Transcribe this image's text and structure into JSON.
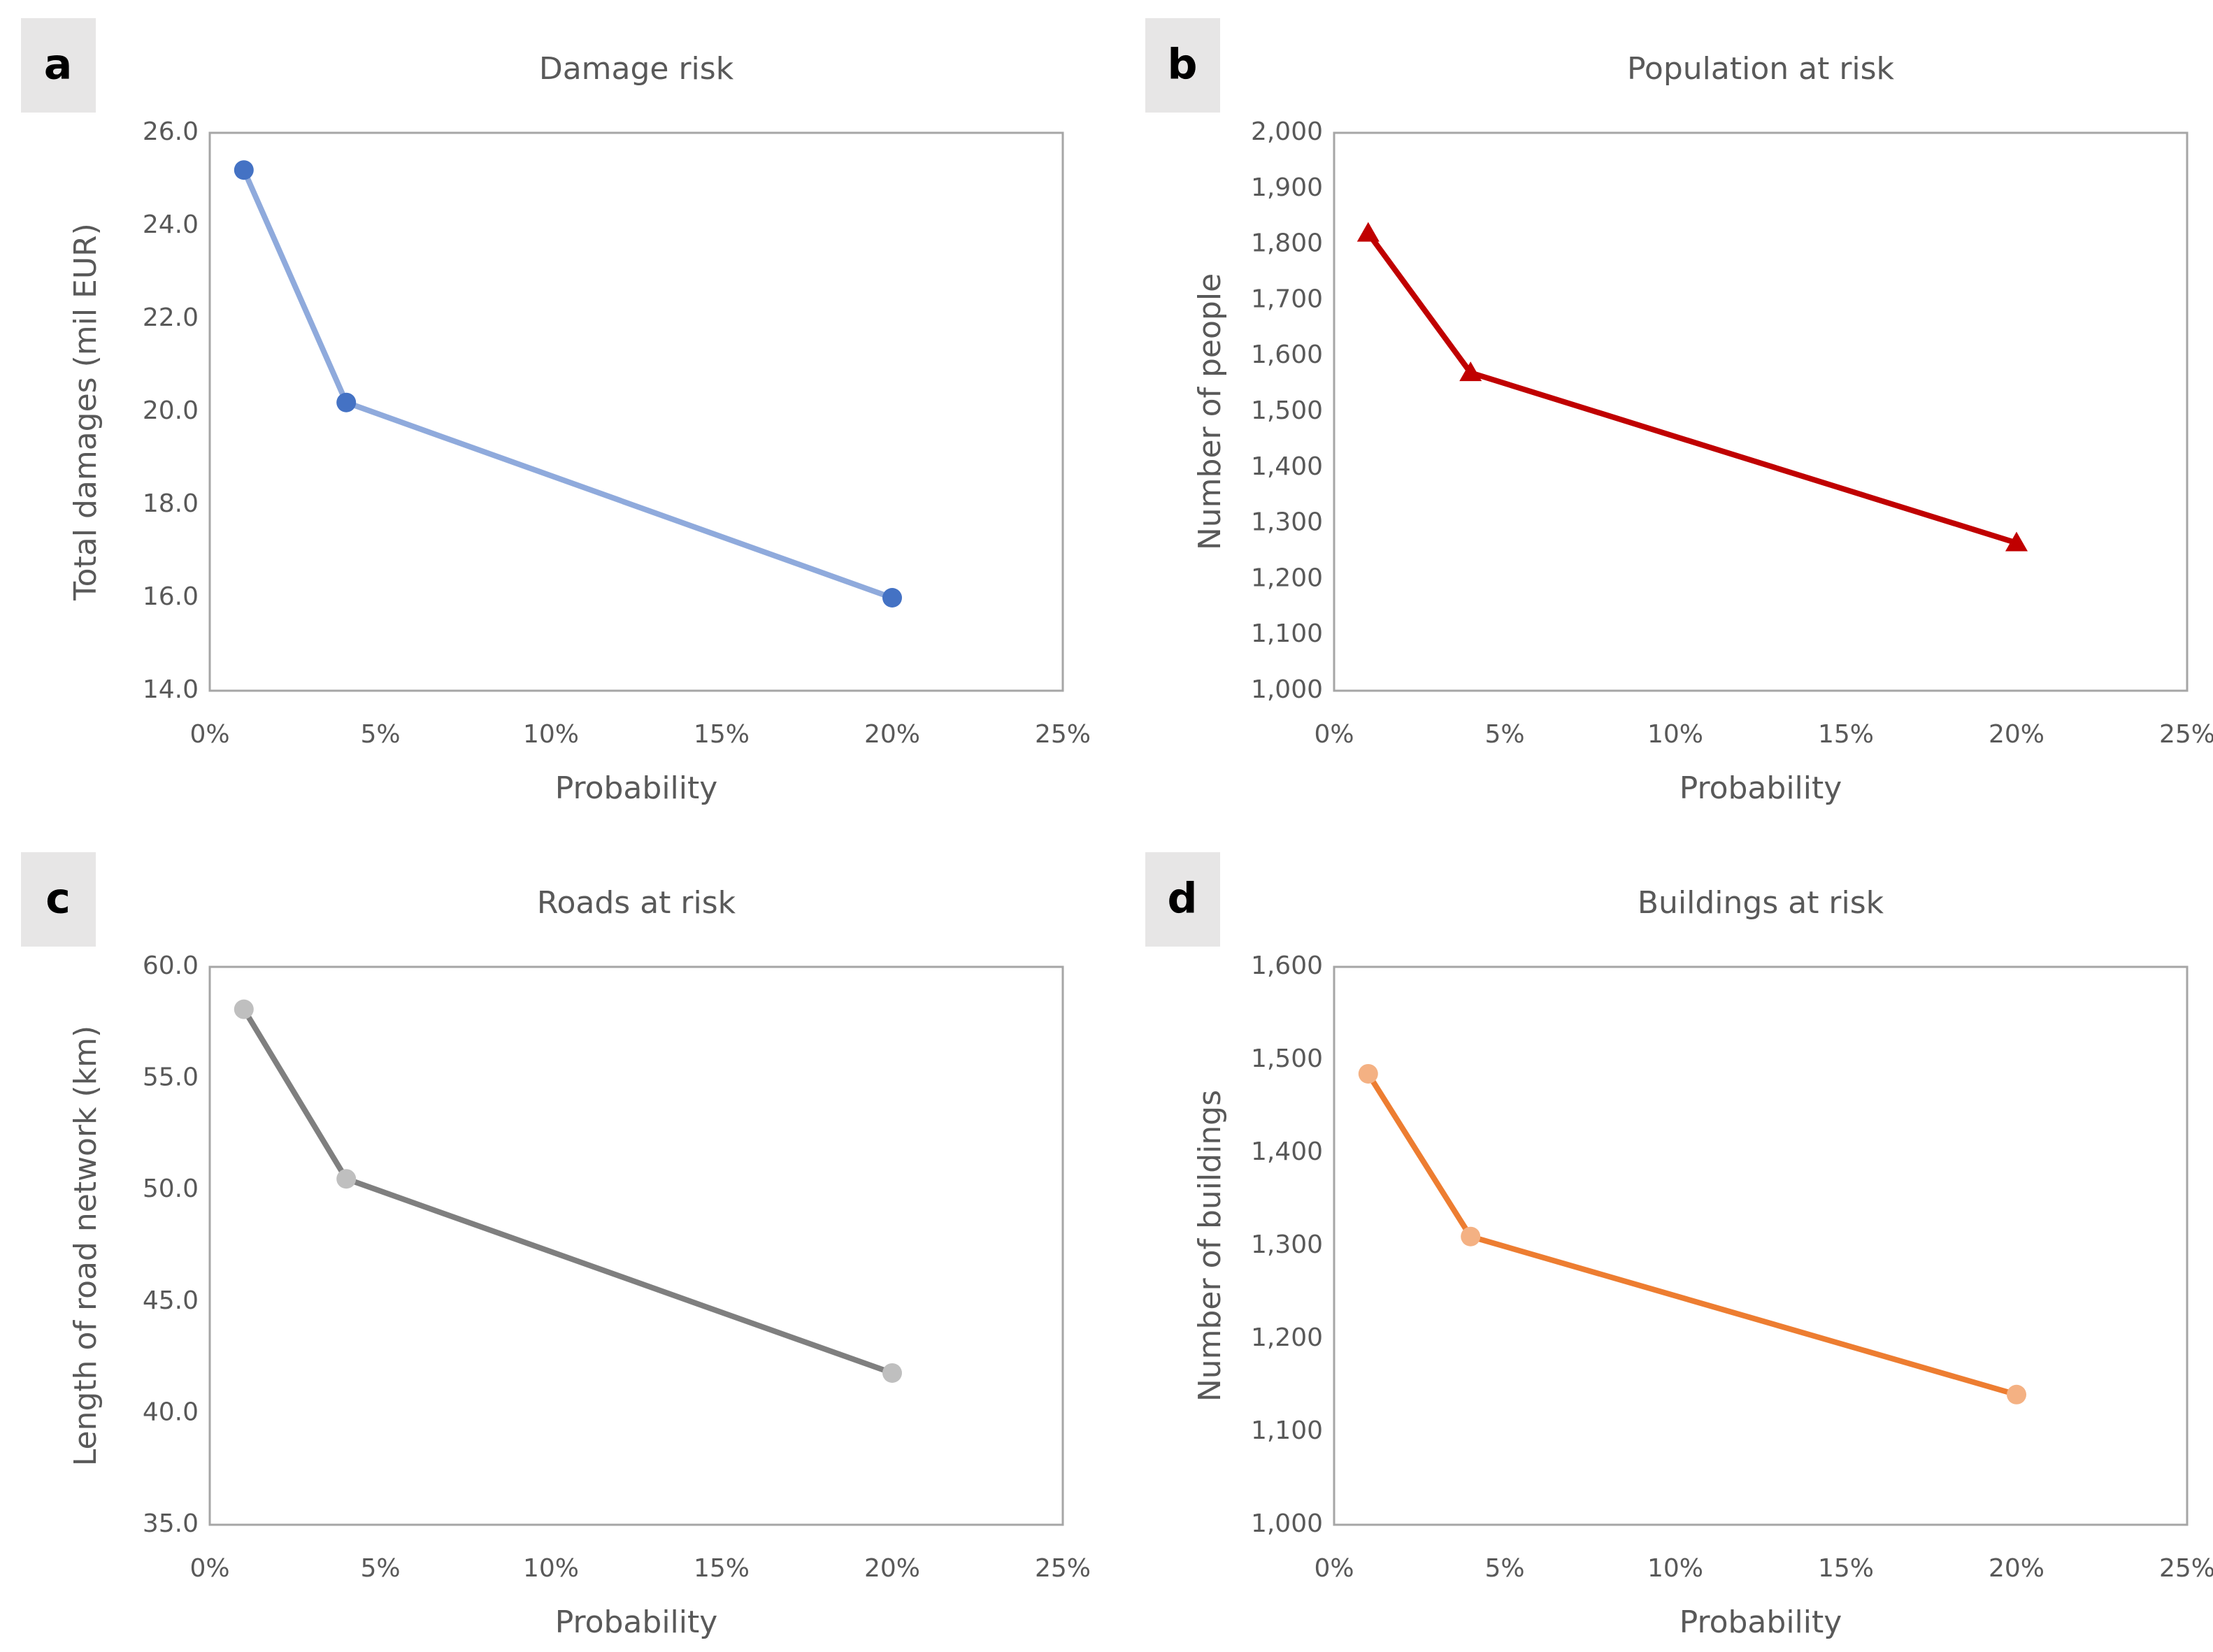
{
  "chart_data": [
    {
      "type": "line",
      "panel_label": "a",
      "title": "Damage risk",
      "x_label": "Probability",
      "y_label": "Total damages (mil EUR)",
      "x": [
        1,
        4,
        20
      ],
      "values": [
        25.2,
        20.2,
        16.0
      ],
      "xlim": [
        0,
        25
      ],
      "xticks": [
        {
          "value": 0,
          "label": "0%"
        },
        {
          "value": 5,
          "label": "5%"
        },
        {
          "value": 10,
          "label": "10%"
        },
        {
          "value": 15,
          "label": "15%"
        },
        {
          "value": 20,
          "label": "20%"
        },
        {
          "value": 25,
          "label": "25%"
        }
      ],
      "ylim": [
        14,
        26
      ],
      "yticks": [
        {
          "value": 14,
          "label": "14.0"
        },
        {
          "value": 16,
          "label": "16.0"
        },
        {
          "value": 18,
          "label": "18.0"
        },
        {
          "value": 20,
          "label": "20.0"
        },
        {
          "value": 22,
          "label": "22.0"
        },
        {
          "value": 24,
          "label": "24.0"
        },
        {
          "value": 26,
          "label": "26.0"
        }
      ],
      "line_color": "#8faadc",
      "marker_color": "#4472c4",
      "marker": "circle"
    },
    {
      "type": "line",
      "panel_label": "b",
      "title": "Population at risk",
      "x_label": "Probability",
      "y_label": "Number of people",
      "x": [
        1,
        4,
        20
      ],
      "values": [
        1820,
        1570,
        1265
      ],
      "xlim": [
        0,
        25
      ],
      "xticks": [
        {
          "value": 0,
          "label": "0%"
        },
        {
          "value": 5,
          "label": "5%"
        },
        {
          "value": 10,
          "label": "10%"
        },
        {
          "value": 15,
          "label": "15%"
        },
        {
          "value": 20,
          "label": "20%"
        },
        {
          "value": 25,
          "label": "25%"
        }
      ],
      "ylim": [
        1000,
        2000
      ],
      "yticks": [
        {
          "value": 1000,
          "label": "1,000"
        },
        {
          "value": 1100,
          "label": "1,100"
        },
        {
          "value": 1200,
          "label": "1,200"
        },
        {
          "value": 1300,
          "label": "1,300"
        },
        {
          "value": 1400,
          "label": "1,400"
        },
        {
          "value": 1500,
          "label": "1,500"
        },
        {
          "value": 1600,
          "label": "1,600"
        },
        {
          "value": 1700,
          "label": "1,700"
        },
        {
          "value": 1800,
          "label": "1,800"
        },
        {
          "value": 1900,
          "label": "1,900"
        },
        {
          "value": 2000,
          "label": "2,000"
        }
      ],
      "line_color": "#c00000",
      "marker_color": "#c00000",
      "marker": "triangle"
    },
    {
      "type": "line",
      "panel_label": "c",
      "title": "Roads at risk",
      "x_label": "Probability",
      "y_label": "Length of road network (km)",
      "x": [
        1,
        4,
        20
      ],
      "values": [
        58.1,
        50.5,
        41.8
      ],
      "xlim": [
        0,
        25
      ],
      "xticks": [
        {
          "value": 0,
          "label": "0%"
        },
        {
          "value": 5,
          "label": "5%"
        },
        {
          "value": 10,
          "label": "10%"
        },
        {
          "value": 15,
          "label": "15%"
        },
        {
          "value": 20,
          "label": "20%"
        },
        {
          "value": 25,
          "label": "25%"
        }
      ],
      "ylim": [
        35,
        60
      ],
      "yticks": [
        {
          "value": 35,
          "label": "35.0"
        },
        {
          "value": 40,
          "label": "40.0"
        },
        {
          "value": 45,
          "label": "45.0"
        },
        {
          "value": 50,
          "label": "50.0"
        },
        {
          "value": 55,
          "label": "55.0"
        },
        {
          "value": 60,
          "label": "60.0"
        }
      ],
      "line_color": "#7f7f7f",
      "marker_color": "#bfbfbf",
      "marker": "circle"
    },
    {
      "type": "line",
      "panel_label": "d",
      "title": "Buildings at risk",
      "x_label": "Probability",
      "y_label": "Number of buildings",
      "x": [
        1,
        4,
        20
      ],
      "values": [
        1485,
        1310,
        1140
      ],
      "xlim": [
        0,
        25
      ],
      "xticks": [
        {
          "value": 0,
          "label": "0%"
        },
        {
          "value": 5,
          "label": "5%"
        },
        {
          "value": 10,
          "label": "10%"
        },
        {
          "value": 15,
          "label": "15%"
        },
        {
          "value": 20,
          "label": "20%"
        },
        {
          "value": 25,
          "label": "25%"
        }
      ],
      "ylim": [
        1000,
        1600
      ],
      "yticks": [
        {
          "value": 1000,
          "label": "1,000"
        },
        {
          "value": 1100,
          "label": "1,100"
        },
        {
          "value": 1200,
          "label": "1,200"
        },
        {
          "value": 1300,
          "label": "1,300"
        },
        {
          "value": 1400,
          "label": "1,400"
        },
        {
          "value": 1500,
          "label": "1,500"
        },
        {
          "value": 1600,
          "label": "1,600"
        }
      ],
      "line_color": "#ed7d31",
      "marker_color": "#f4b183",
      "marker": "circle"
    }
  ]
}
